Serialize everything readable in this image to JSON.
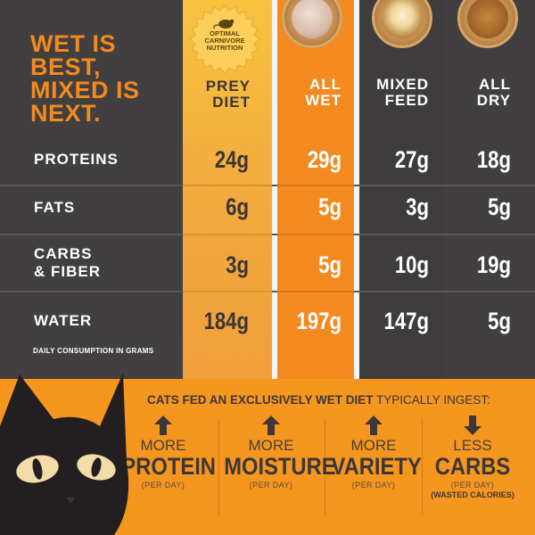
{
  "headline": {
    "line1": "WET IS",
    "line2": "BEST,",
    "line3": "MIXED IS",
    "line4": "NEXT."
  },
  "badge": {
    "line1": "OPTIMAL",
    "line2": "CARNIVORE",
    "line3": "NUTRITION"
  },
  "columns": {
    "prey": {
      "line1": "PREY",
      "line2": "DIET"
    },
    "wet": {
      "line1": "ALL",
      "line2": "WET"
    },
    "mixed": {
      "line1": "MIXED",
      "line2": "FEED"
    },
    "dry": {
      "line1": "ALL",
      "line2": "DRY"
    }
  },
  "rows": [
    {
      "label1": "PROTEINS",
      "label2": "",
      "prey": "24g",
      "wet": "29g",
      "mixed": "27g",
      "dry": "18g"
    },
    {
      "label1": "FATS",
      "label2": "",
      "prey": "6g",
      "wet": "5g",
      "mixed": "3g",
      "dry": "5g"
    },
    {
      "label1": "CARBS",
      "label2": "& FIBER",
      "prey": "3g",
      "wet": "5g",
      "mixed": "10g",
      "dry": "19g"
    },
    {
      "label1": "WATER",
      "label2": "",
      "prey": "184g",
      "wet": "197g",
      "mixed": "147g",
      "dry": "5g"
    }
  ],
  "footnote": "DAILY CONSUMPTION IN GRAMS",
  "bottom": {
    "heading_bold": "CATS FED AN EXCLUSIVELY WET DIET",
    "heading_rest": " TYPICALLY INGEST:",
    "benefits": [
      {
        "direction": "up",
        "small": "MORE",
        "big": "PROTEIN",
        "note": "(PER DAY)",
        "note2": ""
      },
      {
        "direction": "up",
        "small": "MORE",
        "big": "MOISTURE",
        "note": "(PER DAY)",
        "note2": ""
      },
      {
        "direction": "up",
        "small": "MORE",
        "big": "VARIETY",
        "note": "(PER DAY)",
        "note2": ""
      },
      {
        "direction": "down",
        "small": "LESS",
        "big": "CARBS",
        "note": "(PER DAY)",
        "note2": "(WASTED CALORIES)"
      }
    ]
  },
  "colors": {
    "orange": "#f28a1f",
    "gold": "#f8c23f",
    "dark": "#423f40",
    "bottom": "#f5961f"
  },
  "icons": [
    "mouse-icon",
    "badge-seal-icon",
    "arrow-up-icon",
    "arrow-down-icon",
    "black-cat-illustration",
    "food-bowl-image"
  ]
}
